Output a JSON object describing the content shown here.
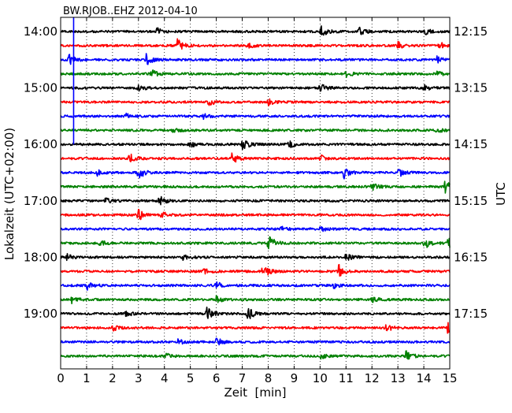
{
  "chart_data": {
    "type": "line",
    "title": "BW.RJOB..EHZ 2012-04-10",
    "xlabel": "Zeit  [min]",
    "ylabel_left": "Lokalzeit (UTC+02:00)",
    "ylabel_right": "UTC",
    "xlim": [
      0,
      15
    ],
    "x_ticks": [
      "0",
      "1",
      "2",
      "3",
      "4",
      "5",
      "6",
      "7",
      "8",
      "9",
      "10",
      "11",
      "12",
      "13",
      "14",
      "15"
    ],
    "left_ticks": [
      "14:00",
      "15:00",
      "16:00",
      "17:00",
      "18:00",
      "19:00"
    ],
    "right_ticks": [
      "12:15",
      "13:15",
      "14:15",
      "15:15",
      "16:15",
      "17:15"
    ],
    "grid": "vertical dotted",
    "colors": [
      "#000000",
      "#ff0000",
      "#0000ff",
      "#008000"
    ],
    "marker_line": {
      "x": 0.5,
      "color": "#0000ff"
    },
    "traces": [
      {
        "start": "14:00",
        "color": "#000000",
        "events": [
          [
            10.0,
            1.0
          ],
          [
            11.5,
            0.7
          ],
          [
            3.7,
            0.5
          ],
          [
            14.0,
            0.6
          ]
        ]
      },
      {
        "start": "14:15",
        "color": "#ff0000",
        "events": [
          [
            4.5,
            1.0
          ],
          [
            13.0,
            0.5
          ],
          [
            7.2,
            0.4
          ],
          [
            14.6,
            0.5
          ]
        ]
      },
      {
        "start": "14:30",
        "color": "#0000ff",
        "events": [
          [
            0.3,
            0.9
          ],
          [
            3.3,
            0.8
          ],
          [
            14.5,
            0.4
          ]
        ]
      },
      {
        "start": "14:45",
        "color": "#008000",
        "events": [
          [
            3.5,
            0.6
          ],
          [
            11.0,
            0.5
          ],
          [
            14.5,
            0.4
          ]
        ]
      },
      {
        "start": "15:00",
        "color": "#000000",
        "events": [
          [
            10.0,
            0.7
          ],
          [
            3.0,
            0.5
          ],
          [
            14.0,
            0.4
          ]
        ]
      },
      {
        "start": "15:15",
        "color": "#ff0000",
        "events": [
          [
            5.7,
            0.6
          ],
          [
            8.0,
            0.4
          ]
        ]
      },
      {
        "start": "15:30",
        "color": "#0000ff",
        "events": [
          [
            2.5,
            0.4
          ],
          [
            5.5,
            0.4
          ]
        ]
      },
      {
        "start": "15:45",
        "color": "#008000",
        "events": [
          [
            4.3,
            0.4
          ],
          [
            14.5,
            0.4
          ]
        ]
      },
      {
        "start": "16:00",
        "color": "#000000",
        "events": [
          [
            7.0,
            1.0
          ],
          [
            5.0,
            0.5
          ],
          [
            8.8,
            0.5
          ]
        ]
      },
      {
        "start": "16:15",
        "color": "#ff0000",
        "events": [
          [
            2.6,
            0.9
          ],
          [
            6.6,
            0.8
          ],
          [
            10.0,
            0.5
          ]
        ]
      },
      {
        "start": "16:30",
        "color": "#0000ff",
        "events": [
          [
            3.0,
            1.0
          ],
          [
            10.9,
            1.0
          ],
          [
            13.0,
            0.7
          ],
          [
            1.4,
            0.4
          ]
        ]
      },
      {
        "start": "16:45",
        "color": "#008000",
        "events": [
          [
            14.8,
            1.0
          ],
          [
            12.0,
            0.5
          ]
        ]
      },
      {
        "start": "17:00",
        "color": "#000000",
        "events": [
          [
            3.8,
            0.7
          ],
          [
            1.7,
            0.4
          ]
        ]
      },
      {
        "start": "17:15",
        "color": "#ff0000",
        "events": [
          [
            3.0,
            1.0
          ],
          [
            3.9,
            0.5
          ]
        ]
      },
      {
        "start": "17:30",
        "color": "#0000ff",
        "events": [
          [
            8.5,
            0.4
          ],
          [
            10.0,
            0.4
          ]
        ]
      },
      {
        "start": "17:45",
        "color": "#008000",
        "events": [
          [
            8.0,
            1.5
          ],
          [
            14.0,
            1.0
          ],
          [
            14.9,
            1.0
          ],
          [
            1.5,
            0.5
          ]
        ]
      },
      {
        "start": "18:00",
        "color": "#000000",
        "events": [
          [
            11.0,
            0.9
          ],
          [
            4.7,
            0.5
          ],
          [
            0.2,
            0.5
          ]
        ]
      },
      {
        "start": "18:15",
        "color": "#ff0000",
        "events": [
          [
            7.8,
            1.0
          ],
          [
            10.7,
            1.0
          ],
          [
            5.5,
            0.4
          ]
        ]
      },
      {
        "start": "18:30",
        "color": "#0000ff",
        "events": [
          [
            1.0,
            0.9
          ],
          [
            6.0,
            0.5
          ],
          [
            10.5,
            0.4
          ]
        ]
      },
      {
        "start": "18:45",
        "color": "#008000",
        "events": [
          [
            0.4,
            0.5
          ],
          [
            6.0,
            0.5
          ],
          [
            12.0,
            0.4
          ]
        ]
      },
      {
        "start": "19:00",
        "color": "#000000",
        "events": [
          [
            5.6,
            1.3
          ],
          [
            7.2,
            1.0
          ],
          [
            2.5,
            0.4
          ]
        ]
      },
      {
        "start": "19:15",
        "color": "#ff0000",
        "events": [
          [
            12.5,
            0.7
          ],
          [
            14.9,
            0.7
          ],
          [
            2.0,
            0.4
          ]
        ]
      },
      {
        "start": "19:30",
        "color": "#0000ff",
        "events": [
          [
            6.0,
            0.6
          ],
          [
            4.5,
            0.4
          ]
        ]
      },
      {
        "start": "19:45",
        "color": "#008000",
        "events": [
          [
            13.3,
            0.8
          ],
          [
            4.0,
            0.5
          ],
          [
            10.0,
            0.4
          ]
        ]
      }
    ]
  }
}
